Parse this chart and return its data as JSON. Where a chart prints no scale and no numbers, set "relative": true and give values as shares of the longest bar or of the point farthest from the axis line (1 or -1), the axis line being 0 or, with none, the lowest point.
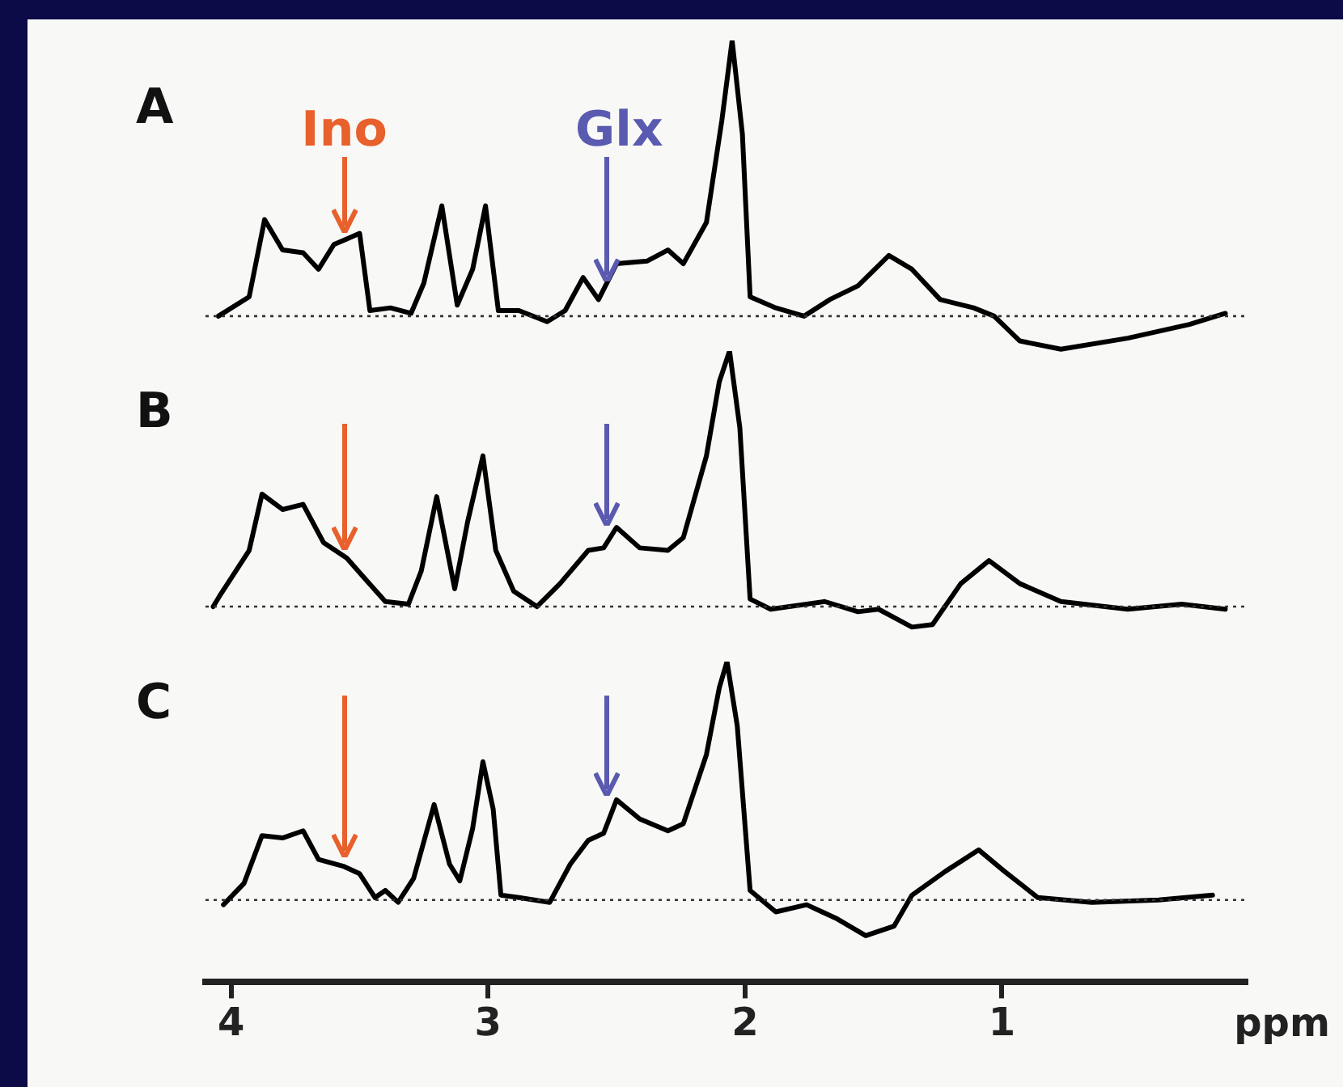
{
  "chart_data": [
    {
      "type": "line",
      "title": "A",
      "relative": true,
      "color": "#000000",
      "xlim": [
        4.1,
        0.05
      ],
      "tick_labels": false,
      "x": [
        4.05,
        3.93,
        3.87,
        3.8,
        3.72,
        3.66,
        3.6,
        3.55,
        3.5,
        3.46,
        3.38,
        3.3,
        3.25,
        3.18,
        3.12,
        3.06,
        3.01,
        2.96,
        2.88,
        2.77,
        2.7,
        2.63,
        2.57,
        2.5,
        2.38,
        2.3,
        2.24,
        2.15,
        2.09,
        2.05,
        2.01,
        1.98,
        1.88,
        1.77,
        1.67,
        1.56,
        1.44,
        1.35,
        1.24,
        1.11,
        1.03,
        0.93,
        0.77,
        0.51,
        0.27,
        0.13
      ],
      "values": [
        0,
        0.07,
        0.35,
        0.24,
        0.23,
        0.17,
        0.26,
        0.28,
        0.3,
        0.02,
        0.03,
        0.01,
        0.12,
        0.4,
        0.04,
        0.17,
        0.4,
        0.02,
        0.02,
        -0.02,
        0.02,
        0.14,
        0.06,
        0.19,
        0.2,
        0.24,
        0.19,
        0.34,
        0.71,
        1,
        0.66,
        0.07,
        0.03,
        0,
        0.06,
        0.11,
        0.22,
        0.17,
        0.06,
        0.03,
        0,
        -0.09,
        -0.12,
        -0.08,
        -0.03,
        0.01
      ],
      "ref_lines": [
        {
          "axis": "y",
          "value": 0,
          "line_style": "dotted"
        }
      ],
      "annotations": [
        {
          "text": "Ino",
          "x": 3.56,
          "y": 0.28
        },
        {
          "text": "Glx",
          "x": 2.54,
          "y": 0.1
        }
      ]
    },
    {
      "type": "line",
      "title": "B",
      "relative": true,
      "color": "#000000",
      "xlim": [
        4.1,
        0.05
      ],
      "tick_labels": false,
      "x": [
        4.07,
        4.04,
        3.93,
        3.88,
        3.8,
        3.72,
        3.64,
        3.55,
        3.48,
        3.4,
        3.31,
        3.26,
        3.2,
        3.13,
        3.08,
        3.02,
        2.97,
        2.9,
        2.81,
        2.72,
        2.61,
        2.55,
        2.5,
        2.41,
        2.3,
        2.24,
        2.15,
        2.1,
        2.06,
        2.02,
        1.98,
        1.9,
        1.69,
        1.56,
        1.48,
        1.35,
        1.27,
        1.16,
        1.05,
        0.93,
        0.77,
        0.51,
        0.3,
        0.13
      ],
      "values": [
        0,
        0.05,
        0.22,
        0.44,
        0.38,
        0.4,
        0.25,
        0.19,
        0.11,
        0.02,
        0.01,
        0.14,
        0.43,
        0.07,
        0.33,
        0.59,
        0.22,
        0.06,
        0,
        0.09,
        0.22,
        0.23,
        0.31,
        0.23,
        0.22,
        0.27,
        0.59,
        0.88,
        1,
        0.7,
        0.03,
        -0.01,
        0.02,
        -0.02,
        -0.01,
        -0.08,
        -0.07,
        0.09,
        0.18,
        0.09,
        0.02,
        -0.01,
        0.01,
        -0.01
      ],
      "ref_lines": [
        {
          "axis": "y",
          "value": 0,
          "line_style": "dotted"
        }
      ]
    },
    {
      "type": "line",
      "title": "C",
      "relative": true,
      "color": "#000000",
      "xlim": [
        4.1,
        0.05
      ],
      "xticks": [
        4,
        3,
        2,
        1
      ],
      "xlabel": "ppm",
      "tick_labels": "x",
      "x": [
        4.03,
        3.95,
        3.88,
        3.8,
        3.72,
        3.66,
        3.56,
        3.5,
        3.44,
        3.4,
        3.35,
        3.29,
        3.21,
        3.15,
        3.11,
        3.06,
        3.02,
        2.98,
        2.95,
        2.88,
        2.76,
        2.68,
        2.61,
        2.55,
        2.5,
        2.41,
        2.3,
        2.24,
        2.15,
        2.1,
        2.07,
        2.03,
        1.98,
        1.88,
        1.76,
        1.64,
        1.53,
        1.42,
        1.35,
        1.22,
        1.09,
        0.99,
        0.86,
        0.65,
        0.39,
        0.18
      ],
      "values": [
        -0.02,
        0.07,
        0.27,
        0.26,
        0.29,
        0.17,
        0.14,
        0.11,
        0.01,
        0.04,
        -0.01,
        0.09,
        0.4,
        0.15,
        0.08,
        0.3,
        0.58,
        0.38,
        0.02,
        0.01,
        -0.01,
        0.15,
        0.25,
        0.28,
        0.42,
        0.34,
        0.29,
        0.32,
        0.61,
        0.89,
        1,
        0.73,
        0.04,
        -0.05,
        -0.02,
        -0.08,
        -0.15,
        -0.11,
        0.02,
        0.12,
        0.21,
        0.12,
        0.01,
        -0.01,
        0,
        0.02
      ],
      "ref_lines": [
        {
          "axis": "y",
          "value": 0,
          "line_style": "dotted"
        }
      ]
    }
  ]
}
